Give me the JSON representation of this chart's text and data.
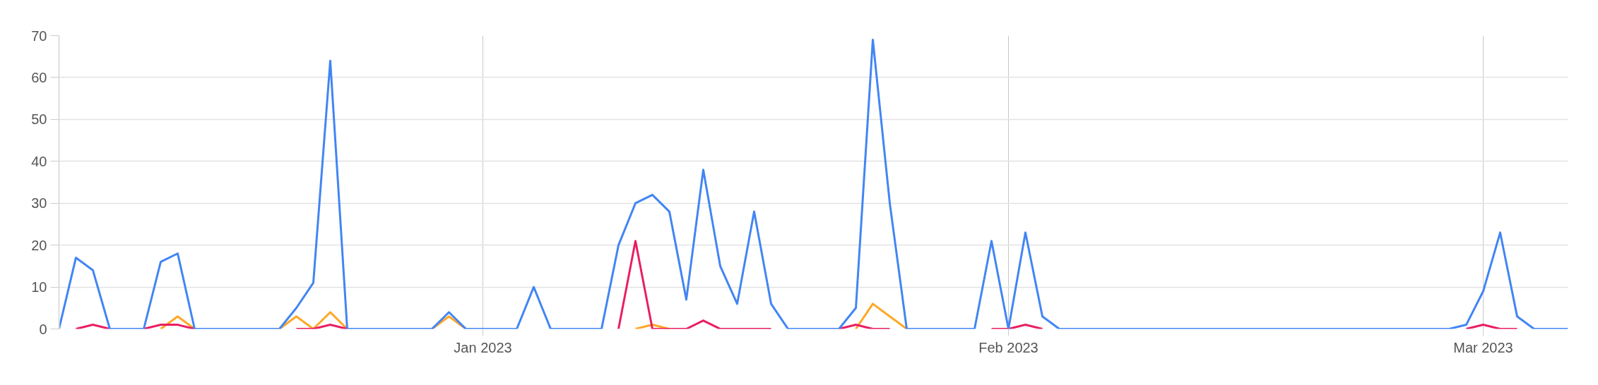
{
  "chart_data": {
    "type": "line",
    "x": [
      "2022-12-07",
      "2022-12-08",
      "2022-12-09",
      "2022-12-10",
      "2022-12-11",
      "2022-12-12",
      "2022-12-13",
      "2022-12-14",
      "2022-12-15",
      "2022-12-16",
      "2022-12-17",
      "2022-12-18",
      "2022-12-19",
      "2022-12-20",
      "2022-12-21",
      "2022-12-22",
      "2022-12-23",
      "2022-12-24",
      "2022-12-25",
      "2022-12-26",
      "2022-12-27",
      "2022-12-28",
      "2022-12-29",
      "2022-12-30",
      "2022-12-31",
      "2023-01-01",
      "2023-01-02",
      "2023-01-03",
      "2023-01-04",
      "2023-01-05",
      "2023-01-06",
      "2023-01-07",
      "2023-01-08",
      "2023-01-09",
      "2023-01-10",
      "2023-01-11",
      "2023-01-12",
      "2023-01-13",
      "2023-01-14",
      "2023-01-15",
      "2023-01-16",
      "2023-01-17",
      "2023-01-18",
      "2023-01-19",
      "2023-01-20",
      "2023-01-21",
      "2023-01-22",
      "2023-01-23",
      "2023-01-24",
      "2023-01-25",
      "2023-01-26",
      "2023-01-27",
      "2023-01-28",
      "2023-01-29",
      "2023-01-30",
      "2023-01-31",
      "2023-02-01",
      "2023-02-02",
      "2023-02-03",
      "2023-02-04",
      "2023-02-05",
      "2023-02-06",
      "2023-02-07",
      "2023-02-08",
      "2023-02-09",
      "2023-02-10",
      "2023-02-11",
      "2023-02-12",
      "2023-02-13",
      "2023-02-14",
      "2023-02-15",
      "2023-02-16",
      "2023-02-17",
      "2023-02-18",
      "2023-02-19",
      "2023-02-20",
      "2023-02-21",
      "2023-02-22",
      "2023-02-23",
      "2023-02-24",
      "2023-02-25",
      "2023-02-26",
      "2023-02-27",
      "2023-02-28",
      "2023-03-01",
      "2023-03-02",
      "2023-03-03",
      "2023-03-04",
      "2023-03-05",
      "2023-03-06"
    ],
    "series": [
      {
        "color": "#ffa726",
        "values": [
          null,
          null,
          null,
          null,
          null,
          null,
          0,
          3,
          0,
          null,
          null,
          null,
          null,
          0,
          3,
          0,
          4,
          0,
          null,
          null,
          null,
          null,
          0,
          3,
          0,
          null,
          null,
          null,
          null,
          null,
          null,
          null,
          null,
          null,
          0,
          1,
          0,
          null,
          null,
          null,
          null,
          null,
          null,
          null,
          null,
          null,
          null,
          0,
          6,
          3,
          0,
          null,
          null,
          null,
          null,
          null,
          null,
          null,
          null,
          null,
          null,
          null,
          null,
          null,
          null,
          null,
          null,
          null,
          null,
          null,
          null,
          null,
          null,
          null,
          null,
          null,
          null,
          null,
          null,
          null,
          null,
          null,
          null,
          null,
          null,
          null,
          null,
          null,
          null,
          null
        ]
      },
      {
        "color": "#e91e63",
        "values": [
          null,
          0,
          1,
          0,
          null,
          0,
          1,
          1,
          0,
          null,
          null,
          null,
          null,
          null,
          0,
          0,
          1,
          0,
          null,
          null,
          null,
          null,
          null,
          null,
          null,
          null,
          null,
          null,
          null,
          null,
          null,
          null,
          null,
          0,
          21,
          0,
          0,
          0,
          2,
          0,
          0,
          0,
          0,
          null,
          null,
          null,
          0,
          1,
          0,
          0,
          null,
          null,
          null,
          null,
          null,
          0,
          0,
          1,
          0,
          null,
          null,
          null,
          null,
          null,
          null,
          null,
          null,
          null,
          null,
          null,
          null,
          null,
          null,
          null,
          null,
          null,
          null,
          null,
          null,
          null,
          null,
          null,
          null,
          0,
          1,
          0,
          0,
          null,
          null,
          null
        ]
      },
      {
        "color": "#4285f4",
        "values": [
          0,
          17,
          14,
          0,
          0,
          0,
          16,
          18,
          0,
          0,
          0,
          0,
          0,
          0,
          5,
          11,
          64,
          0,
          0,
          0,
          0,
          0,
          0,
          4,
          0,
          0,
          0,
          0,
          10,
          0,
          0,
          0,
          0,
          20,
          30,
          32,
          28,
          7,
          38,
          15,
          6,
          28,
          6,
          0,
          0,
          0,
          0,
          5,
          69,
          30,
          0,
          0,
          0,
          0,
          0,
          21,
          0,
          23,
          3,
          0,
          0,
          0,
          0,
          0,
          0,
          0,
          0,
          0,
          0,
          0,
          0,
          0,
          0,
          0,
          0,
          0,
          0,
          0,
          0,
          0,
          0,
          0,
          0,
          1,
          9,
          23,
          3,
          0,
          0,
          0
        ]
      }
    ],
    "xlim": [
      "2022-12-07",
      "2023-03-06"
    ],
    "xticks": [
      {
        "value": "2023-01-01",
        "label": "Jan 2023"
      },
      {
        "value": "2023-02-01",
        "label": "Feb 2023"
      },
      {
        "value": "2023-03-01",
        "label": "Mar 2023"
      }
    ],
    "ylim": [
      0,
      70
    ],
    "yticks": [
      0,
      10,
      20,
      30,
      40,
      50,
      60,
      70
    ],
    "grid": true
  }
}
